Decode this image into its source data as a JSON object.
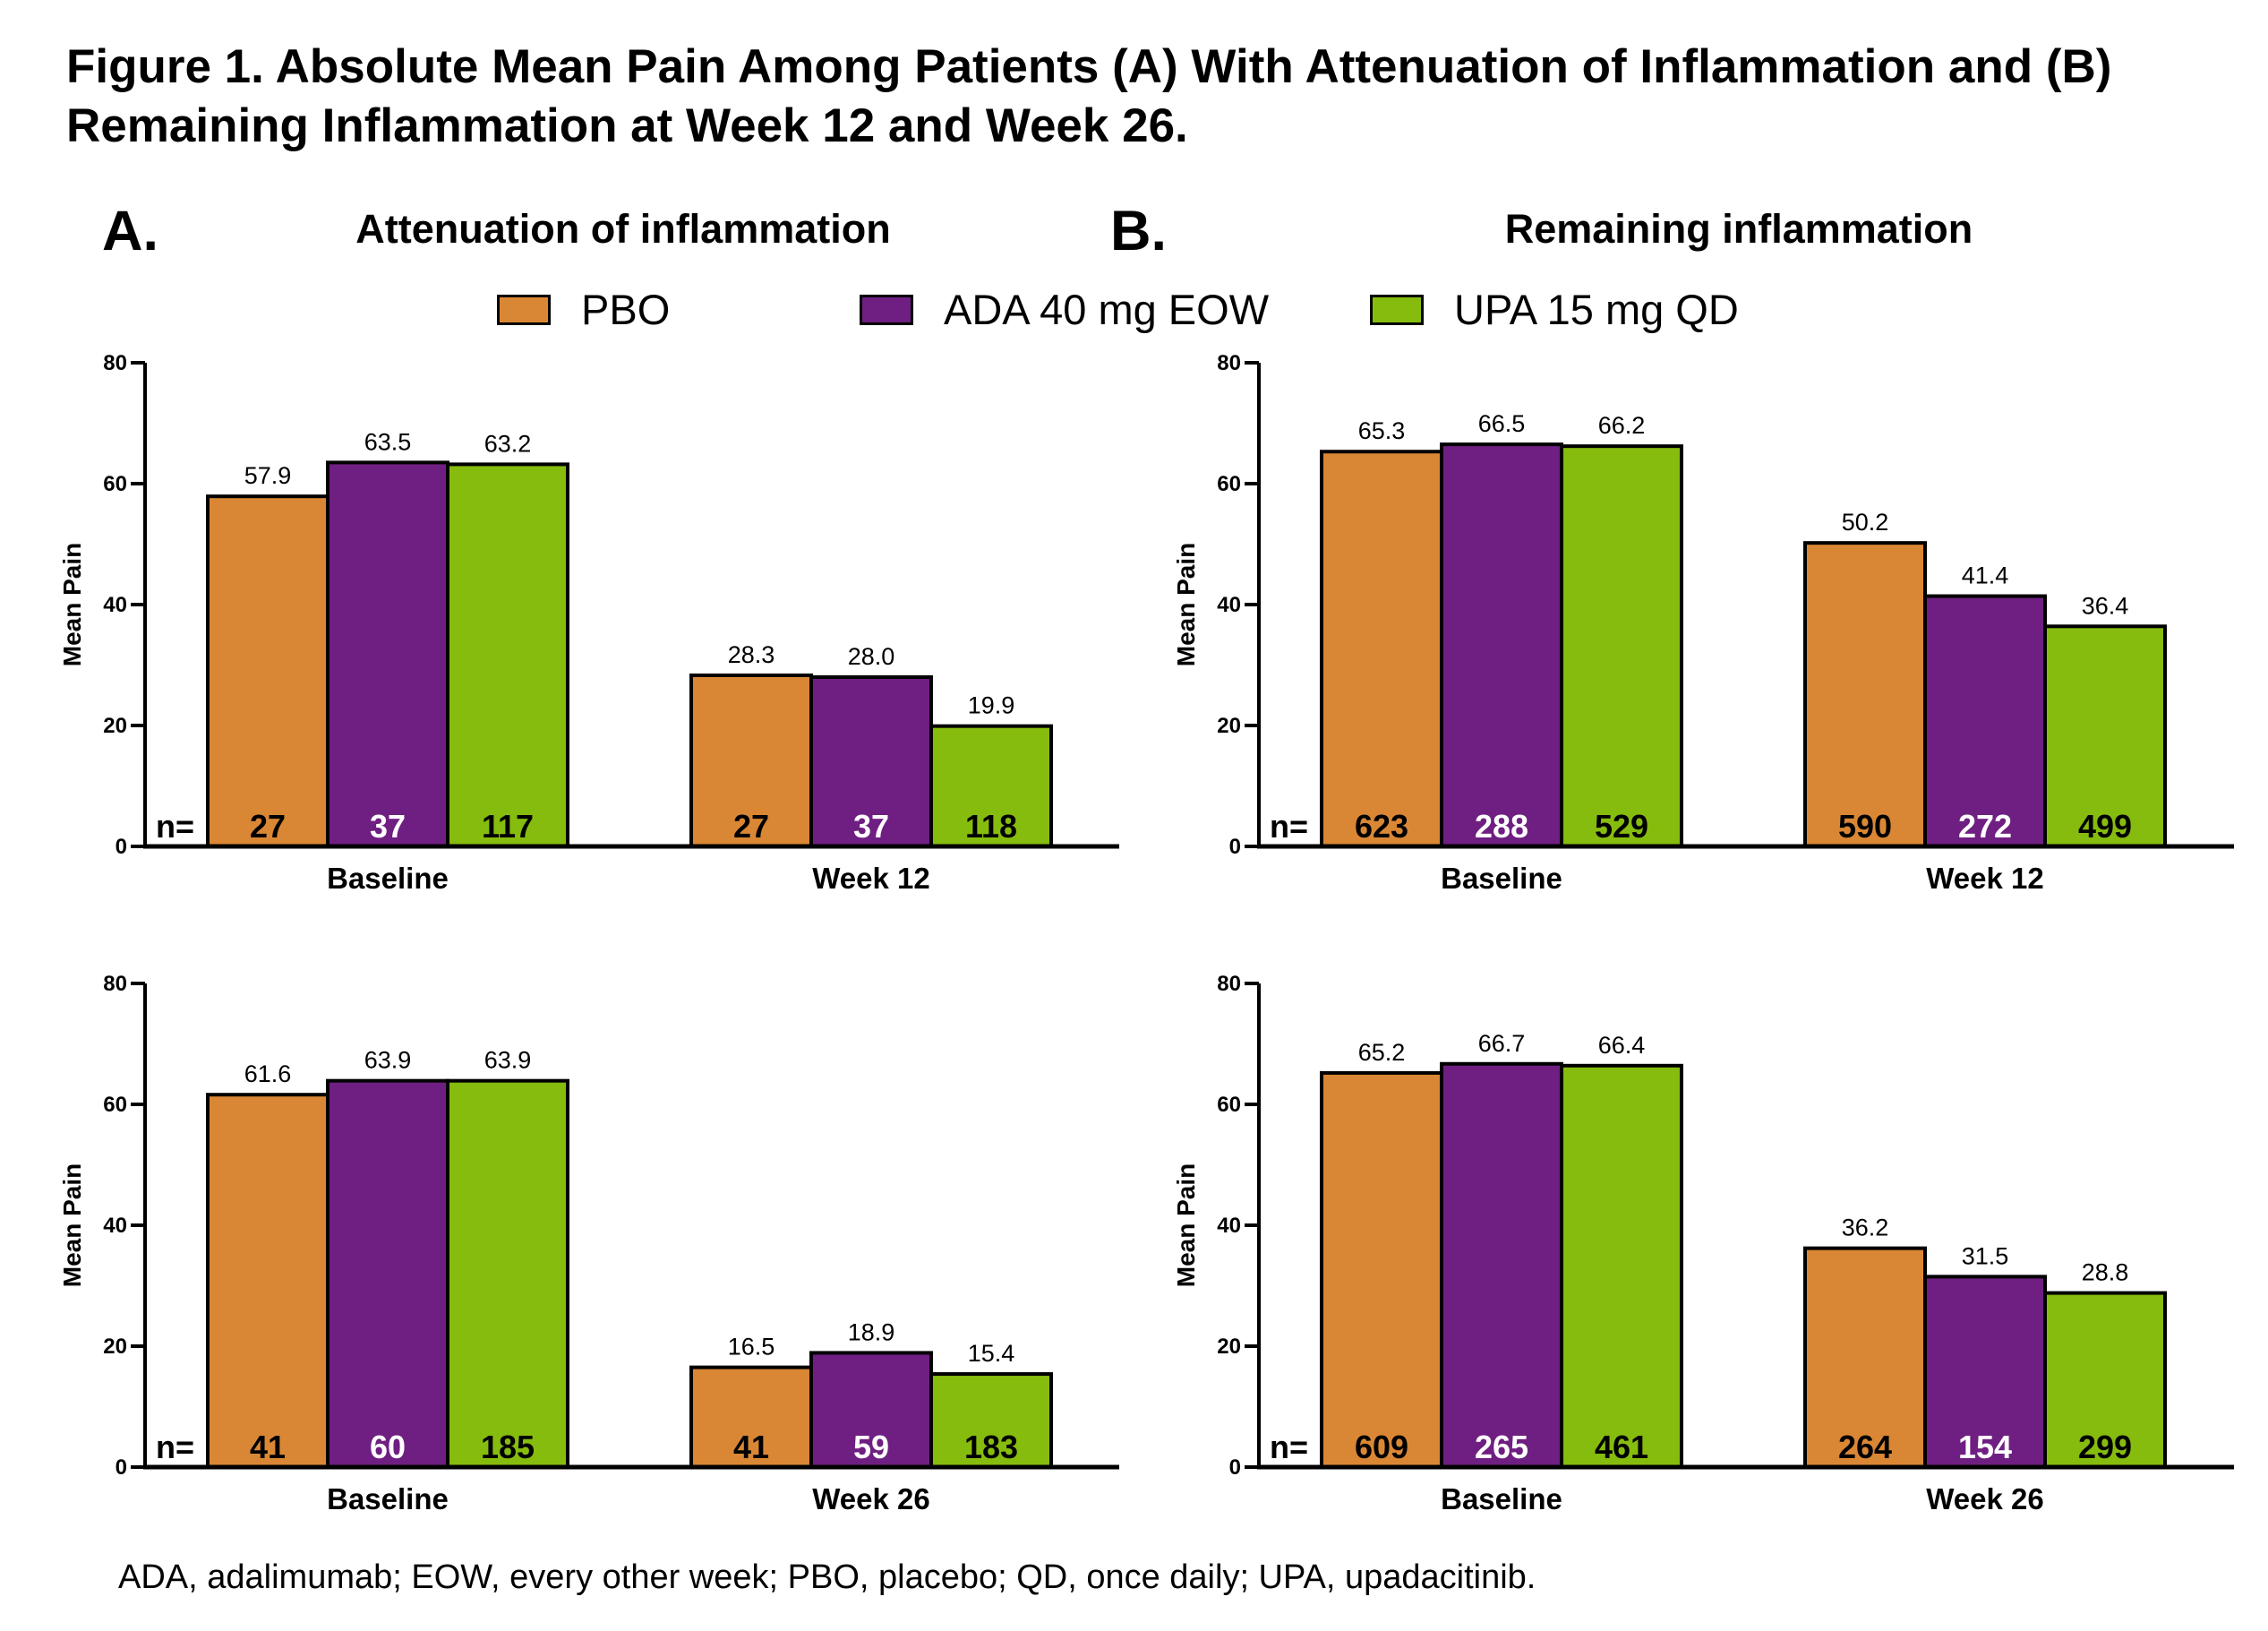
{
  "title": "Figure 1. Absolute Mean Pain Among Patients (A) With Attenuation of Inflammation and (B) Remaining Inflammation at Week 12 and Week 26.",
  "panels": [
    {
      "letter": "A.",
      "title": "Attenuation of inflammation"
    },
    {
      "letter": "B.",
      "title": "Remaining inflammation"
    }
  ],
  "legend": [
    {
      "label": "PBO",
      "color": "#DA8735"
    },
    {
      "label": "ADA 40 mg EOW",
      "color": "#6F1F81"
    },
    {
      "label": "UPA 15 mg QD",
      "color": "#86BC0E"
    }
  ],
  "n_label": "n=",
  "footnote": "ADA, adalimumab; EOW, every other week; PBO, placebo; QD, once daily; UPA, upadacitinib.",
  "chart_data": [
    {
      "type": "bar",
      "panel": "A",
      "position": "top",
      "ylabel": "Mean Pain",
      "ylim": [
        0,
        80
      ],
      "yticks": [
        0,
        20,
        40,
        60,
        80
      ],
      "categories": [
        "Baseline",
        "Week 12"
      ],
      "series": [
        {
          "name": "PBO",
          "values": [
            57.9,
            28.3
          ],
          "labels": [
            "57.9",
            "28.3"
          ],
          "n": [
            27,
            27
          ]
        },
        {
          "name": "ADA 40 mg EOW",
          "values": [
            63.5,
            28.0
          ],
          "labels": [
            "63.5",
            "28.0"
          ],
          "n": [
            37,
            37
          ]
        },
        {
          "name": "UPA 15 mg QD",
          "values": [
            63.2,
            19.9
          ],
          "labels": [
            "63.2",
            "19.9"
          ],
          "n": [
            117,
            118
          ]
        }
      ]
    },
    {
      "type": "bar",
      "panel": "B",
      "position": "top",
      "ylabel": "Mean Pain",
      "ylim": [
        0,
        80
      ],
      "yticks": [
        0,
        20,
        40,
        60,
        80
      ],
      "categories": [
        "Baseline",
        "Week 12"
      ],
      "series": [
        {
          "name": "PBO",
          "values": [
            65.3,
            50.2
          ],
          "labels": [
            "65.3",
            "50.2"
          ],
          "n": [
            623,
            590
          ]
        },
        {
          "name": "ADA 40 mg EOW",
          "values": [
            66.5,
            41.4
          ],
          "labels": [
            "66.5",
            "41.4"
          ],
          "n": [
            288,
            272
          ]
        },
        {
          "name": "UPA 15 mg QD",
          "values": [
            66.2,
            36.4
          ],
          "labels": [
            "66.2",
            "36.4"
          ],
          "n": [
            529,
            499
          ]
        }
      ]
    },
    {
      "type": "bar",
      "panel": "A",
      "position": "bottom",
      "ylabel": "Mean Pain",
      "ylim": [
        0,
        80
      ],
      "yticks": [
        0,
        20,
        40,
        60,
        80
      ],
      "categories": [
        "Baseline",
        "Week 26"
      ],
      "series": [
        {
          "name": "PBO",
          "values": [
            61.6,
            16.5
          ],
          "labels": [
            "61.6",
            "16.5"
          ],
          "n": [
            41,
            41
          ]
        },
        {
          "name": "ADA 40 mg EOW",
          "values": [
            63.9,
            18.9
          ],
          "labels": [
            "63.9",
            "18.9"
          ],
          "n": [
            60,
            59
          ]
        },
        {
          "name": "UPA 15 mg QD",
          "values": [
            63.9,
            15.4
          ],
          "labels": [
            "63.9",
            "15.4"
          ],
          "n": [
            185,
            183
          ]
        }
      ]
    },
    {
      "type": "bar",
      "panel": "B",
      "position": "bottom",
      "ylabel": "Mean Pain",
      "ylim": [
        0,
        80
      ],
      "yticks": [
        0,
        20,
        40,
        60,
        80
      ],
      "categories": [
        "Baseline",
        "Week 26"
      ],
      "series": [
        {
          "name": "PBO",
          "values": [
            65.2,
            36.2
          ],
          "labels": [
            "65.2",
            "36.2"
          ],
          "n": [
            609,
            264
          ]
        },
        {
          "name": "ADA 40 mg EOW",
          "values": [
            66.7,
            31.5
          ],
          "labels": [
            "66.7",
            "31.5"
          ],
          "n": [
            265,
            154
          ]
        },
        {
          "name": "UPA 15 mg QD",
          "values": [
            66.4,
            28.8
          ],
          "labels": [
            "66.4",
            "28.8"
          ],
          "n": [
            461,
            299
          ]
        }
      ]
    }
  ]
}
